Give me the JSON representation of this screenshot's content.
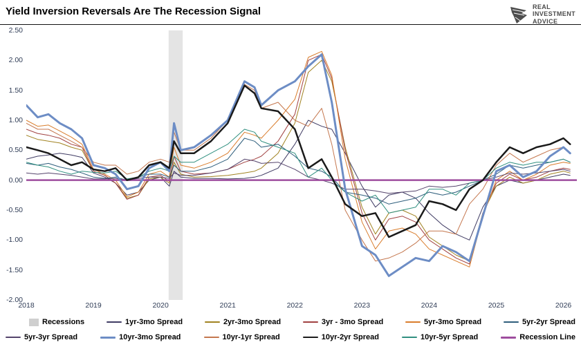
{
  "header": {
    "title": "Yield Inversion Reversals Are The Recession Signal",
    "logo_line1": "REAL",
    "logo_line2": "INVESTMENT",
    "logo_line3": "ADVICE"
  },
  "chart_data": {
    "type": "line",
    "title": "Yield Inversion Reversals Are The Recession Signal",
    "xlabel": "",
    "ylabel": "",
    "xlim": [
      2018,
      2026.2
    ],
    "ylim": [
      -2.0,
      2.5
    ],
    "grid": false,
    "legend_position": "bottom",
    "y_ticks": [
      "2.50",
      "2.00",
      "1.50",
      "1.00",
      "0.50",
      "0.00",
      "-0.50",
      "-1.00",
      "-1.50",
      "-2.00"
    ],
    "x_ticks": [
      "2018",
      "2019",
      "2020",
      "2021",
      "2022",
      "2023",
      "2024",
      "2025",
      "2026"
    ],
    "recessions_label": "Recessions",
    "recession_band": {
      "start": 2020.12,
      "end": 2020.33,
      "color": "#e4e4e4"
    },
    "recession_line": {
      "label": "Recession Line",
      "y": 0,
      "color": "#9e4d9e",
      "width": 2.5
    },
    "x": [
      2018.0,
      2018.17,
      2018.33,
      2018.5,
      2018.67,
      2018.83,
      2019.0,
      2019.17,
      2019.33,
      2019.5,
      2019.67,
      2019.83,
      2020.0,
      2020.13,
      2020.2,
      2020.3,
      2020.5,
      2020.75,
      2021.0,
      2021.25,
      2021.4,
      2021.5,
      2021.75,
      2022.0,
      2022.2,
      2022.4,
      2022.55,
      2022.75,
      2023.0,
      2023.2,
      2023.4,
      2023.6,
      2023.8,
      2024.0,
      2024.2,
      2024.4,
      2024.6,
      2024.8,
      2025.0,
      2025.2,
      2025.4,
      2025.6,
      2025.8,
      2026.0,
      2026.1
    ],
    "series": [
      {
        "name": "1yr-3mo Spread",
        "color": "#3f3b63",
        "width": 1,
        "values": [
          0.35,
          0.4,
          0.42,
          0.45,
          0.42,
          0.38,
          0.12,
          0.05,
          -0.05,
          -0.25,
          -0.2,
          0.0,
          0.05,
          -0.1,
          0.15,
          0.05,
          0.03,
          0.03,
          0.02,
          0.03,
          0.05,
          0.08,
          0.2,
          0.6,
          1.0,
          0.9,
          0.85,
          0.45,
          -0.1,
          -0.45,
          -0.25,
          -0.2,
          -0.3,
          -0.55,
          -0.75,
          -0.9,
          -1.0,
          -0.45,
          -0.1,
          0.0,
          -0.05,
          0.0,
          0.05,
          0.1,
          0.08
        ]
      },
      {
        "name": "2yr-3mo Spread",
        "color": "#a08220",
        "width": 1,
        "values": [
          0.75,
          0.68,
          0.65,
          0.62,
          0.55,
          0.5,
          0.15,
          0.08,
          -0.05,
          -0.3,
          -0.25,
          0.02,
          0.05,
          -0.05,
          0.3,
          0.1,
          0.05,
          0.06,
          0.08,
          0.12,
          0.15,
          0.2,
          0.45,
          0.95,
          1.8,
          2.0,
          1.65,
          0.55,
          -0.45,
          -0.9,
          -0.55,
          -0.5,
          -0.6,
          -0.95,
          -1.1,
          -1.25,
          -1.35,
          -0.55,
          -0.1,
          0.05,
          -0.05,
          0.0,
          0.1,
          0.15,
          0.12
        ]
      },
      {
        "name": "3yr - 3mo Spread",
        "color": "#a04040",
        "width": 1,
        "values": [
          0.85,
          0.78,
          0.75,
          0.7,
          0.6,
          0.55,
          0.15,
          0.08,
          -0.05,
          -0.32,
          -0.25,
          0.05,
          0.08,
          -0.02,
          0.4,
          0.15,
          0.1,
          0.12,
          0.18,
          0.3,
          0.35,
          0.4,
          0.65,
          1.1,
          2.0,
          2.1,
          1.7,
          0.5,
          -0.55,
          -1.0,
          -0.65,
          -0.6,
          -0.7,
          -1.0,
          -1.15,
          -1.3,
          -1.4,
          -0.55,
          -0.05,
          0.1,
          0.0,
          0.05,
          0.15,
          0.2,
          0.18
        ]
      },
      {
        "name": "5yr-3mo Spread",
        "color": "#d97c2b",
        "width": 1,
        "values": [
          1.0,
          0.9,
          0.92,
          0.82,
          0.72,
          0.6,
          0.18,
          0.1,
          0.0,
          -0.28,
          -0.2,
          0.1,
          0.15,
          0.05,
          0.55,
          0.25,
          0.2,
          0.3,
          0.45,
          0.8,
          0.75,
          0.7,
          1.0,
          1.35,
          2.05,
          2.15,
          1.75,
          0.35,
          -0.7,
          -1.15,
          -0.85,
          -0.8,
          -0.9,
          -1.15,
          -1.25,
          -1.35,
          -1.45,
          -0.6,
          0.0,
          0.15,
          0.0,
          0.1,
          0.25,
          0.3,
          0.28
        ]
      },
      {
        "name": "5yr-2yr Spread",
        "color": "#2d5d7b",
        "width": 1,
        "values": [
          0.28,
          0.25,
          0.28,
          0.22,
          0.18,
          0.12,
          0.05,
          0.03,
          0.05,
          0.0,
          0.05,
          0.1,
          0.1,
          0.05,
          0.25,
          0.15,
          0.15,
          0.22,
          0.35,
          0.7,
          0.65,
          0.55,
          0.6,
          0.4,
          0.2,
          0.15,
          0.05,
          -0.2,
          -0.25,
          -0.3,
          -0.4,
          -0.35,
          -0.3,
          -0.2,
          -0.25,
          -0.2,
          -0.1,
          0.0,
          0.1,
          0.25,
          0.2,
          0.25,
          0.3,
          0.35,
          0.3
        ]
      },
      {
        "name": "5yr-3yr Spread",
        "color": "#54436b",
        "width": 1,
        "values": [
          0.12,
          0.1,
          0.12,
          0.1,
          0.08,
          0.05,
          0.02,
          0.02,
          0.03,
          0.0,
          0.03,
          0.05,
          0.05,
          0.03,
          0.12,
          0.08,
          0.08,
          0.12,
          0.18,
          0.35,
          0.32,
          0.28,
          0.3,
          0.18,
          0.05,
          0.0,
          -0.05,
          -0.15,
          -0.15,
          -0.18,
          -0.22,
          -0.2,
          -0.18,
          -0.1,
          -0.12,
          -0.1,
          -0.05,
          0.0,
          0.05,
          0.12,
          0.1,
          0.12,
          0.15,
          0.18,
          0.15
        ]
      },
      {
        "name": "10yr-1yr Spread",
        "color": "#c4764d",
        "width": 1,
        "values": [
          0.95,
          0.85,
          0.85,
          0.75,
          0.65,
          0.55,
          0.3,
          0.25,
          0.25,
          0.1,
          0.15,
          0.3,
          0.35,
          0.3,
          0.8,
          0.5,
          0.5,
          0.7,
          1.0,
          1.6,
          1.5,
          1.2,
          1.3,
          1.0,
          0.9,
          1.2,
          0.6,
          -0.5,
          -1.0,
          -1.35,
          -1.3,
          -1.2,
          -1.05,
          -0.85,
          -0.85,
          -0.9,
          -0.4,
          -0.15,
          0.25,
          0.45,
          0.3,
          0.4,
          0.5,
          0.55,
          0.45
        ]
      },
      {
        "name": "10yr-5yr Spread",
        "color": "#2f8f7f",
        "width": 1,
        "values": [
          0.3,
          0.25,
          0.22,
          0.15,
          0.1,
          0.15,
          0.13,
          0.12,
          0.15,
          0.02,
          0.05,
          0.15,
          0.2,
          0.15,
          0.4,
          0.3,
          0.3,
          0.45,
          0.6,
          0.85,
          0.8,
          0.65,
          0.55,
          0.45,
          0.05,
          0.2,
          0.0,
          -0.2,
          -0.35,
          -0.25,
          -0.55,
          -0.5,
          -0.45,
          -0.15,
          -0.15,
          -0.25,
          -0.05,
          0.0,
          0.2,
          0.3,
          0.25,
          0.3,
          0.3,
          0.35,
          0.3
        ]
      },
      {
        "name": "10yr-3mo Spread",
        "color": "#6d8dc5",
        "width": 3,
        "values": [
          1.25,
          1.05,
          1.1,
          0.95,
          0.85,
          0.7,
          0.25,
          0.2,
          0.1,
          -0.15,
          -0.1,
          0.2,
          0.3,
          0.15,
          0.95,
          0.5,
          0.55,
          0.75,
          1.0,
          1.65,
          1.55,
          1.25,
          1.5,
          1.65,
          1.9,
          2.1,
          1.3,
          -0.15,
          -1.1,
          -1.25,
          -1.6,
          -1.45,
          -1.3,
          -1.35,
          -1.1,
          -1.2,
          -1.35,
          -0.6,
          0.15,
          0.25,
          0.05,
          0.15,
          0.4,
          0.55,
          0.45
        ]
      },
      {
        "name": "10yr-2yr Spread",
        "color": "#1a1a1a",
        "width": 2.5,
        "values": [
          0.55,
          0.5,
          0.45,
          0.35,
          0.25,
          0.3,
          0.18,
          0.15,
          0.2,
          0.0,
          0.05,
          0.25,
          0.3,
          0.2,
          0.65,
          0.45,
          0.45,
          0.65,
          0.95,
          1.58,
          1.45,
          1.2,
          1.15,
          0.85,
          0.2,
          0.35,
          0.05,
          -0.4,
          -0.6,
          -0.55,
          -0.95,
          -0.85,
          -0.75,
          -0.35,
          -0.4,
          -0.5,
          -0.15,
          0.0,
          0.3,
          0.55,
          0.45,
          0.55,
          0.6,
          0.7,
          0.6
        ]
      }
    ],
    "legend_rows": [
      [
        "Recessions",
        "1yr-3mo Spread",
        "2yr-3mo Spread",
        "3yr - 3mo Spread",
        "5yr-3mo Spread",
        "5yr-2yr Spread"
      ],
      [
        "5yr-3yr Spread",
        "10yr-3mo Spread",
        "10yr-1yr Spread",
        "10yr-2yr Spread",
        "10yr-5yr Spread",
        "Recession Line"
      ]
    ]
  }
}
